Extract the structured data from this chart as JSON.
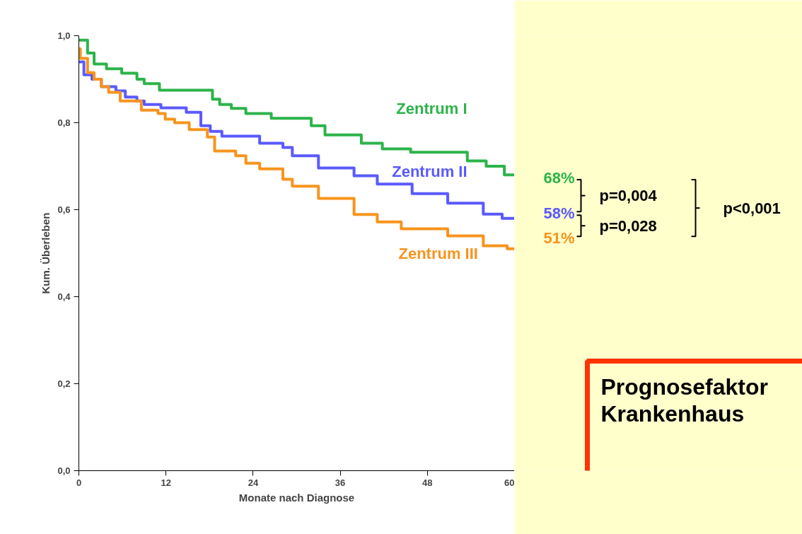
{
  "chart_data": {
    "type": "step",
    "xlabel": "Monate nach Diagnose",
    "ylabel": "Kum. Überleben",
    "xlim": [
      0,
      60
    ],
    "ylim": [
      0,
      1
    ],
    "xticks": [
      0,
      12,
      24,
      36,
      48,
      60
    ],
    "yticks": [
      {
        "value": 0,
        "label": "0,0"
      },
      {
        "value": 0.2,
        "label": "0,2"
      },
      {
        "value": 0.4,
        "label": "0,4"
      },
      {
        "value": 0.6,
        "label": "0,6"
      },
      {
        "value": 0.8,
        "label": "0,8"
      },
      {
        "value": 1,
        "label": "1,0"
      }
    ],
    "grid": false,
    "marker": "none",
    "line_style": "solid",
    "series": [
      {
        "name": "Zentrum I",
        "color": "#2db34a",
        "x": [
          0,
          1.2,
          2.1,
          3.8,
          5.9,
          8.0,
          9.0,
          11.1,
          18.4,
          19.4,
          21.0,
          23.0,
          26.5,
          32.0,
          33.9,
          38.9,
          41.8,
          45.7,
          53.5,
          56.1,
          58.6,
          60
        ],
        "values": [
          0.99,
          0.96,
          0.935,
          0.924,
          0.914,
          0.9,
          0.89,
          0.875,
          0.854,
          0.842,
          0.833,
          0.821,
          0.81,
          0.793,
          0.772,
          0.753,
          0.74,
          0.732,
          0.712,
          0.7,
          0.68,
          0.68
        ],
        "value_labels": [
          null,
          null,
          null,
          null,
          null,
          null,
          null,
          null,
          null,
          null,
          null,
          null,
          null,
          null,
          null,
          null,
          null,
          null,
          null,
          null,
          null,
          "68%"
        ]
      },
      {
        "name": "Zentrum II",
        "color": "#5a5aff",
        "x": [
          0,
          0.7,
          1.8,
          3.1,
          5.1,
          6.4,
          8.0,
          9.0,
          11.3,
          14.8,
          16.8,
          18.1,
          19.7,
          24.9,
          28.1,
          29.4,
          33.0,
          37.9,
          41.1,
          45.9,
          50.8,
          55.7,
          58.3,
          60
        ],
        "values": [
          0.94,
          0.91,
          0.9,
          0.883,
          0.873,
          0.859,
          0.85,
          0.842,
          0.834,
          0.824,
          0.793,
          0.78,
          0.769,
          0.753,
          0.743,
          0.724,
          0.696,
          0.678,
          0.659,
          0.637,
          0.615,
          0.59,
          0.58,
          0.58
        ],
        "value_labels": [
          null,
          null,
          null,
          null,
          null,
          null,
          null,
          null,
          null,
          null,
          null,
          null,
          null,
          null,
          null,
          null,
          null,
          null,
          null,
          null,
          null,
          null,
          null,
          "58%"
        ]
      },
      {
        "name": "Zentrum III",
        "color": "#f7941d",
        "x": [
          0,
          0.2,
          1.2,
          2.1,
          3.1,
          4.1,
          5.7,
          8.6,
          10.9,
          11.9,
          13.2,
          15.2,
          17.7,
          18.7,
          21.6,
          23.0,
          24.9,
          28.1,
          29.4,
          33.0,
          37.9,
          41.1,
          44.4,
          50.8,
          55.7,
          59.0,
          60
        ],
        "values": [
          0.97,
          0.948,
          0.915,
          0.9,
          0.883,
          0.87,
          0.85,
          0.829,
          0.821,
          0.808,
          0.8,
          0.784,
          0.767,
          0.735,
          0.724,
          0.707,
          0.694,
          0.67,
          0.654,
          0.626,
          0.589,
          0.572,
          0.556,
          0.54,
          0.517,
          0.51,
          0.51
        ],
        "value_labels": [
          null,
          null,
          null,
          null,
          null,
          null,
          null,
          null,
          null,
          null,
          null,
          null,
          null,
          null,
          null,
          null,
          null,
          null,
          null,
          null,
          null,
          null,
          null,
          null,
          null,
          null,
          "51%"
        ]
      }
    ],
    "annotations": [
      "p=0,004",
      "p=0,028",
      "p<0,001",
      "Prognosefaktor Krankenhaus"
    ]
  }
}
